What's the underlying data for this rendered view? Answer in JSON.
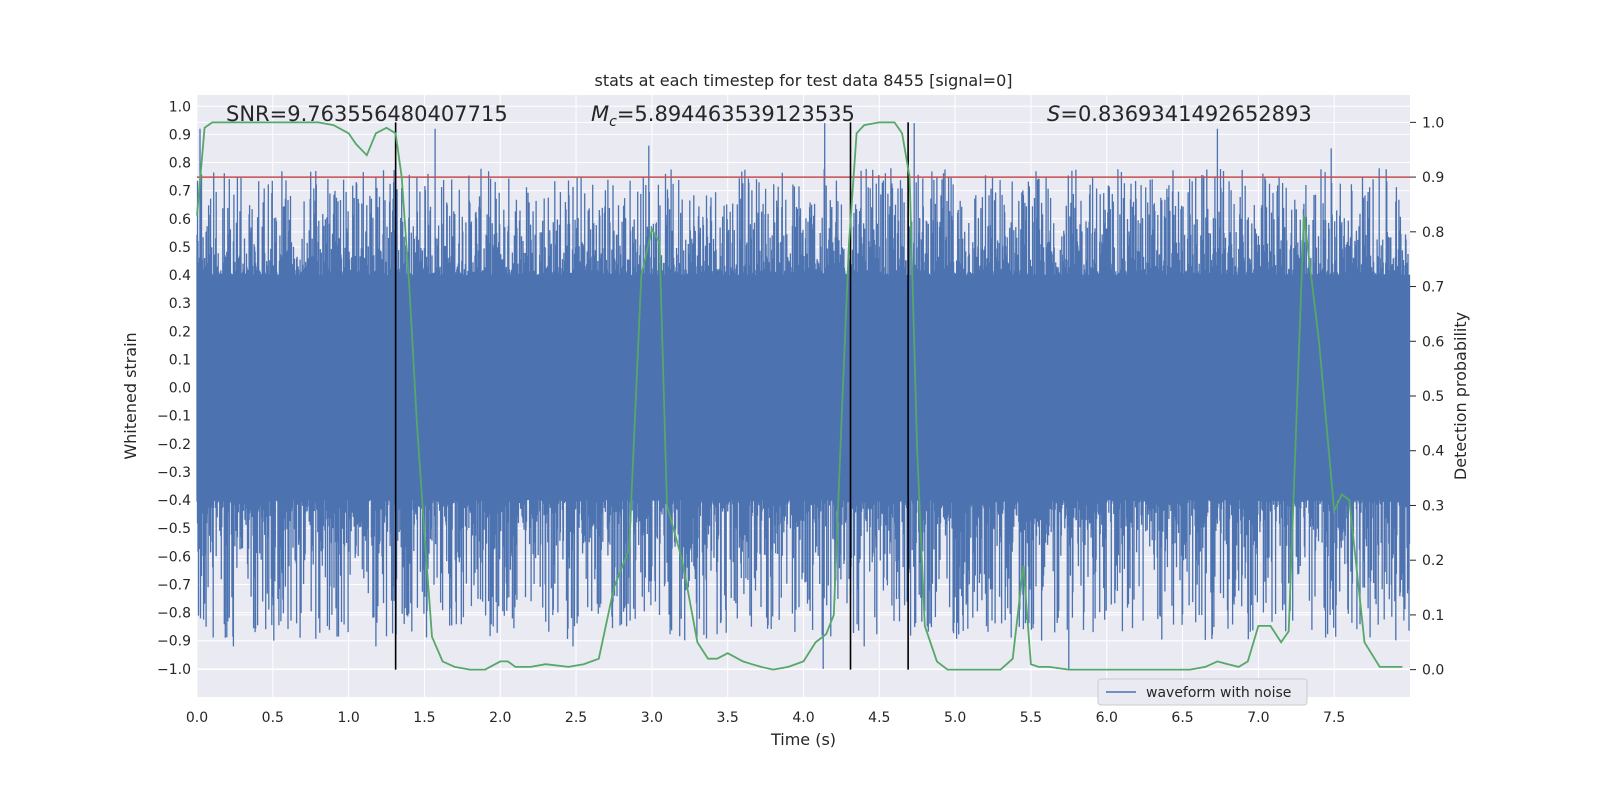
{
  "chart_data": {
    "type": "line",
    "title": "stats at each timestep for test data 8455 [signal=0]",
    "xlabel": "Time (s)",
    "ylabel": "Whitened strain",
    "y2label": "Detection probability",
    "xlim": [
      0.0,
      8.0
    ],
    "ylim": [
      -1.1,
      1.04
    ],
    "y2lim": [
      -0.05,
      1.05
    ],
    "x_ticks": [
      0.0,
      0.5,
      1.0,
      1.5,
      2.0,
      2.5,
      3.0,
      3.5,
      4.0,
      4.5,
      5.0,
      5.5,
      6.0,
      6.5,
      7.0,
      7.5
    ],
    "x_tick_labels": [
      "0.0",
      "0.5",
      "1.0",
      "1.5",
      "2.0",
      "2.5",
      "3.0",
      "3.5",
      "4.0",
      "4.5",
      "5.0",
      "5.5",
      "6.0",
      "6.5",
      "7.0",
      "7.5"
    ],
    "y_ticks": [
      1.0,
      0.9,
      0.8,
      0.7,
      0.6,
      0.5,
      0.4,
      0.3,
      0.2,
      0.1,
      0.0,
      -0.1,
      -0.2,
      -0.3,
      -0.4,
      -0.5,
      -0.6,
      -0.7,
      -0.8,
      -0.9,
      -1.0
    ],
    "y_tick_labels": [
      "1.0",
      "0.9",
      "0.8",
      "0.7",
      "0.6",
      "0.5",
      "0.4",
      "0.3",
      "0.2",
      "0.1",
      "0.0",
      "−0.1",
      "−0.2",
      "−0.3",
      "−0.4",
      "−0.5",
      "−0.6",
      "−0.7",
      "−0.8",
      "−0.9",
      "−1.0"
    ],
    "y2_ticks": [
      1.0,
      0.9,
      0.8,
      0.7,
      0.6,
      0.5,
      0.4,
      0.3,
      0.2,
      0.1,
      0.0
    ],
    "y2_tick_labels": [
      "1.0",
      "0.9",
      "0.8",
      "0.7",
      "0.6",
      "0.5",
      "0.4",
      "0.3",
      "0.2",
      "0.1",
      "0.0"
    ],
    "grid": true,
    "legend_position": "lower-right",
    "annotations": {
      "snr": "SNR=9.763556480407715",
      "mc_symbol": "M",
      "mc_sub": "c",
      "mc_value": "=5.894463539123535",
      "s_symbol": "S",
      "s_value": "=0.8369341492652893"
    },
    "threshold": {
      "axis": "y2",
      "value": 0.9,
      "color": "#c44e52"
    },
    "vlines": [
      1.31,
      4.31,
      4.69
    ],
    "series": [
      {
        "name": "waveform with noise",
        "axis": "y",
        "color": "#4c72b0",
        "style": "noise",
        "x_range": [
          0.0,
          8.0
        ],
        "core_range": [
          -0.4,
          0.4
        ],
        "tail_max": 0.78,
        "tail_min": -0.9,
        "peaks": [
          {
            "x": 0.02,
            "y": 0.92
          },
          {
            "x": 1.57,
            "y": 0.92
          },
          {
            "x": 2.98,
            "y": 0.86
          },
          {
            "x": 4.14,
            "y": 0.94
          },
          {
            "x": 4.73,
            "y": 0.94
          },
          {
            "x": 6.73,
            "y": 0.92
          },
          {
            "x": 7.48,
            "y": 0.85
          },
          {
            "x": 0.06,
            "y": -0.85
          },
          {
            "x": 0.24,
            "y": -0.92
          },
          {
            "x": 1.18,
            "y": -0.92
          },
          {
            "x": 2.48,
            "y": -0.92
          },
          {
            "x": 4.13,
            "y": -1.0
          },
          {
            "x": 4.4,
            "y": -0.92
          },
          {
            "x": 5.75,
            "y": -1.0
          },
          {
            "x": 6.35,
            "y": -0.81
          }
        ]
      },
      {
        "name": "",
        "axis": "y2",
        "color": "#55a868",
        "style": "line",
        "x": [
          0.0,
          0.05,
          0.1,
          0.2,
          0.4,
          0.6,
          0.8,
          0.9,
          1.0,
          1.05,
          1.12,
          1.18,
          1.25,
          1.31,
          1.35,
          1.4,
          1.45,
          1.5,
          1.55,
          1.62,
          1.7,
          1.8,
          1.9,
          2.0,
          2.05,
          2.1,
          2.2,
          2.3,
          2.45,
          2.55,
          2.65,
          2.75,
          2.85,
          2.93,
          3.0,
          3.05,
          3.1,
          3.2,
          3.3,
          3.37,
          3.43,
          3.5,
          3.6,
          3.66,
          3.72,
          3.8,
          3.9,
          4.0,
          4.08,
          4.15,
          4.2,
          4.25,
          4.3,
          4.35,
          4.4,
          4.5,
          4.6,
          4.65,
          4.7,
          4.75,
          4.8,
          4.88,
          4.95,
          5.0,
          5.1,
          5.2,
          5.3,
          5.38,
          5.45,
          5.5,
          5.55,
          5.62,
          5.75,
          5.9,
          6.0,
          6.2,
          6.4,
          6.55,
          6.65,
          6.73,
          6.8,
          6.87,
          6.93,
          7.0,
          7.08,
          7.15,
          7.2,
          7.3,
          7.4,
          7.5,
          7.55,
          7.6,
          7.7,
          7.8,
          7.95
        ],
        "y": [
          0.83,
          0.99,
          1.0,
          1.0,
          1.0,
          1.0,
          1.0,
          0.995,
          0.98,
          0.96,
          0.94,
          0.98,
          0.99,
          0.98,
          0.9,
          0.7,
          0.45,
          0.25,
          0.06,
          0.015,
          0.005,
          0.0,
          0.0,
          0.015,
          0.015,
          0.005,
          0.005,
          0.01,
          0.005,
          0.01,
          0.02,
          0.15,
          0.22,
          0.72,
          0.805,
          0.78,
          0.3,
          0.2,
          0.05,
          0.02,
          0.02,
          0.03,
          0.015,
          0.01,
          0.005,
          0.0,
          0.005,
          0.015,
          0.05,
          0.065,
          0.1,
          0.45,
          0.78,
          0.98,
          0.995,
          1.0,
          1.0,
          0.98,
          0.9,
          0.4,
          0.08,
          0.015,
          0.0,
          0.0,
          0.0,
          0.0,
          0.0,
          0.02,
          0.19,
          0.01,
          0.005,
          0.005,
          0.0,
          0.0,
          0.0,
          0.0,
          0.0,
          0.0,
          0.005,
          0.015,
          0.01,
          0.005,
          0.015,
          0.08,
          0.08,
          0.05,
          0.07,
          0.83,
          0.6,
          0.29,
          0.32,
          0.31,
          0.05,
          0.005,
          0.005
        ]
      }
    ]
  }
}
